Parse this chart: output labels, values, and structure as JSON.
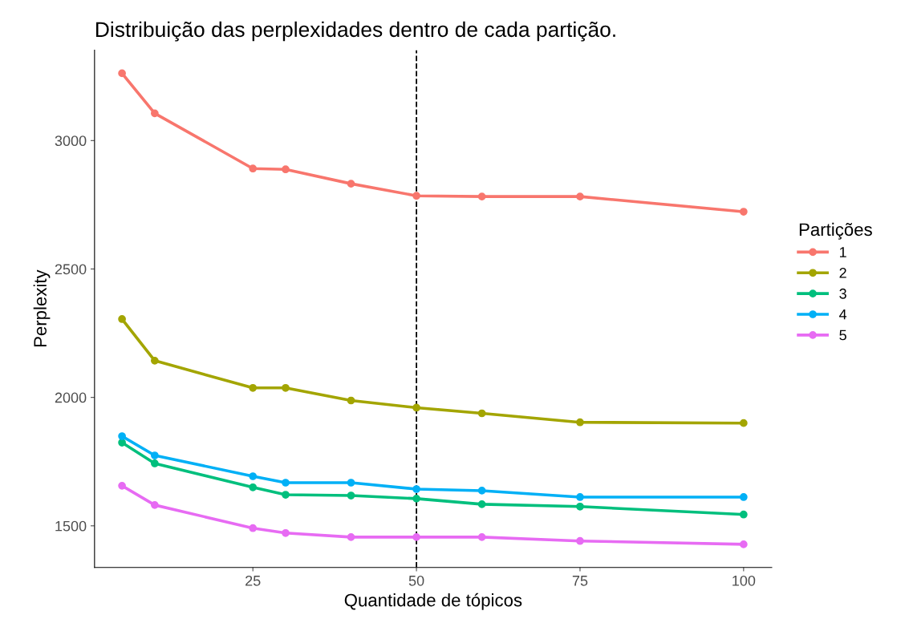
{
  "chart_data": {
    "type": "line",
    "title": "Distribuição das perplexidades dentro de cada partição.",
    "xlabel": "Quantidade de tópicos",
    "ylabel": "Perplexity",
    "legend_title": "Partições",
    "x": [
      5,
      10,
      25,
      30,
      40,
      50,
      60,
      75,
      100
    ],
    "series": [
      {
        "name": "1",
        "color": "#f8766d",
        "values": [
          3262,
          3106,
          2891,
          2888,
          2832,
          2785,
          2782,
          2782,
          2723
        ]
      },
      {
        "name": "2",
        "color": "#a3a500",
        "values": [
          2305,
          2143,
          2037,
          2037,
          1988,
          1960,
          1938,
          1903,
          1900
        ]
      },
      {
        "name": "3",
        "color": "#00bf7d",
        "values": [
          1824,
          1743,
          1650,
          1621,
          1618,
          1606,
          1584,
          1575,
          1544
        ]
      },
      {
        "name": "4",
        "color": "#00b0f6",
        "values": [
          1849,
          1774,
          1693,
          1668,
          1668,
          1643,
          1637,
          1612,
          1612
        ]
      },
      {
        "name": "5",
        "color": "#e76bf3",
        "values": [
          1656,
          1581,
          1491,
          1472,
          1456,
          1456,
          1456,
          1441,
          1428
        ]
      }
    ],
    "xlim": [
      0.8,
      104.3
    ],
    "ylim": [
      1338,
      3352
    ],
    "xticks": [
      25,
      50,
      75,
      100
    ],
    "yticks": [
      1500,
      2000,
      2500,
      3000
    ],
    "ref_lines": [
      {
        "axis": "x",
        "value": 50,
        "color": "#000000",
        "line_style": "dashed"
      }
    ],
    "grid": false,
    "legend": "right",
    "marker": "circle",
    "line_style": "solid"
  }
}
